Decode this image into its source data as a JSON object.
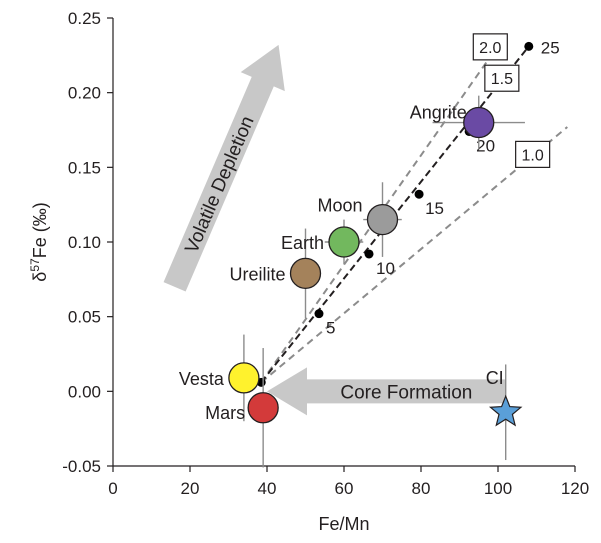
{
  "chart_data": {
    "type": "scatter",
    "xlabel": "Fe/Mn",
    "ylabel_main": "δ",
    "ylabel_sup": "57",
    "ylabel_rest": "Fe (‰)",
    "xlim": [
      0,
      120
    ],
    "ylim": [
      -0.05,
      0.25
    ],
    "x_ticks": [
      0,
      20,
      40,
      60,
      80,
      100,
      120
    ],
    "x_tick_labels": [
      "0",
      "20",
      "40",
      "60",
      "80",
      "100",
      "120"
    ],
    "y_ticks": [
      -0.05,
      0.0,
      0.05,
      0.1,
      0.15,
      0.2,
      0.25
    ],
    "y_tick_labels": [
      "-0.05",
      "0.00",
      "0.05",
      "0.10",
      "0.15",
      "0.20",
      "0.25"
    ],
    "grid": false,
    "bodies": [
      {
        "name": "Vesta",
        "x": 34,
        "y": 0.009,
        "xerr": 0,
        "yerr": 0.029,
        "color": "#fff22d",
        "label_side": "left"
      },
      {
        "name": "Mars",
        "x": 39,
        "y": -0.011,
        "xerr": 0,
        "yerr": 0.04,
        "color": "#d33a3a",
        "label_side": "left"
      },
      {
        "name": "Ureilite",
        "x": 50,
        "y": 0.079,
        "xerr": 0,
        "yerr": 0.03,
        "color": "#a4825b",
        "label_side": "left"
      },
      {
        "name": "Earth",
        "x": 60,
        "y": 0.1,
        "xerr": 5,
        "yerr": 0.015,
        "color": "#72b85e",
        "label_side": "left"
      },
      {
        "name": "Moon",
        "x": 70,
        "y": 0.115,
        "xerr": 5,
        "yerr": 0.025,
        "color": "#9b9b9b",
        "label_side": "top-left"
      },
      {
        "name": "Angrite",
        "x": 95,
        "y": 0.18,
        "xerr": 12,
        "yerr": 0.018,
        "color": "#6a4aa4",
        "label_side": "left"
      }
    ],
    "ci": {
      "name": "CI",
      "x": 102,
      "y": -0.014,
      "yerr": 0.032,
      "color": "#5a9fd8"
    },
    "model_line": {
      "ratio": "1.5",
      "points": [
        {
          "x": 38.5,
          "y": 0.006,
          "label": ""
        },
        {
          "x": 53.5,
          "y": 0.052,
          "label": "5"
        },
        {
          "x": 66.5,
          "y": 0.092,
          "label": "10"
        },
        {
          "x": 79.5,
          "y": 0.132,
          "label": "15"
        },
        {
          "x": 92.5,
          "y": 0.174,
          "label": "20"
        },
        {
          "x": 108,
          "y": 0.231,
          "label": "25"
        }
      ]
    },
    "reference_lines": [
      {
        "ratio": "2.0",
        "end_x": 101,
        "end_y": 0.235,
        "box_x": 98,
        "box_y": 0.23
      },
      {
        "ratio": "1.0",
        "end_x": 118,
        "end_y": 0.177,
        "box_x": 109,
        "box_y": 0.158
      }
    ],
    "arrows": [
      {
        "label": "Volatile Depletion",
        "from_x": 16,
        "from_y": 0.07,
        "to_x": 43,
        "to_y": 0.232
      },
      {
        "label": "Core Formation",
        "from_x": 102,
        "from_y": -0.0,
        "to_x": 40,
        "to_y": -0.0
      }
    ]
  }
}
